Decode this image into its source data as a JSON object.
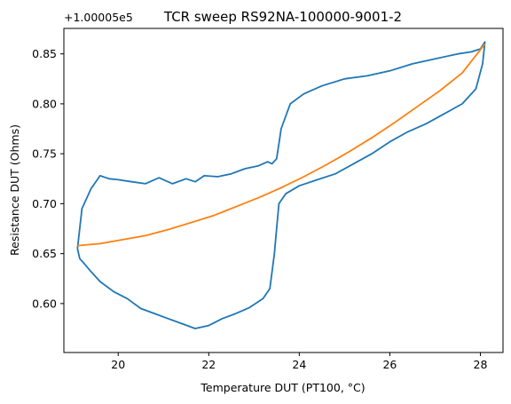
{
  "chart_data": {
    "type": "line",
    "title": "TCR sweep RS92NA-100000-9001-2",
    "xlabel": "Temperature DUT (PT100, °C)",
    "ylabel": "Resistance DUT (Ohms)",
    "offset_label": "+1.00005e5",
    "xlim": [
      18.8,
      28.5
    ],
    "ylim": [
      0.551,
      0.8755
    ],
    "xticks": [
      20,
      22,
      24,
      26,
      28
    ],
    "xtick_labels": [
      "20",
      "22",
      "24",
      "26",
      "28"
    ],
    "yticks": [
      0.6,
      0.65,
      0.7,
      0.75,
      0.8,
      0.85
    ],
    "ytick_labels": [
      "0.60",
      "0.65",
      "0.70",
      "0.75",
      "0.80",
      "0.85"
    ],
    "grid": false,
    "series": [
      {
        "color": "#1f77b4",
        "x": [
          19.1,
          19.2,
          19.4,
          19.6,
          19.8,
          20.0,
          20.3,
          20.6,
          20.9,
          21.2,
          21.5,
          21.7,
          21.9,
          22.2,
          22.5,
          22.8,
          23.1,
          23.3,
          23.4,
          23.5,
          23.55,
          23.6,
          23.8,
          24.1,
          24.5,
          25.0,
          25.5,
          26.0,
          26.5,
          27.0,
          27.5,
          27.8,
          28.0,
          28.1,
          28.05,
          27.9,
          27.6,
          27.2,
          26.8,
          26.4,
          26.0,
          25.6,
          25.2,
          24.8,
          24.4,
          24.0,
          23.7,
          23.55,
          23.5,
          23.45,
          23.35,
          23.2,
          22.9,
          22.6,
          22.3,
          22.0,
          21.7,
          21.4,
          21.1,
          20.8,
          20.5,
          20.2,
          19.9,
          19.6,
          19.4,
          19.25,
          19.15,
          19.1
        ],
        "y": [
          0.655,
          0.695,
          0.715,
          0.728,
          0.725,
          0.724,
          0.722,
          0.72,
          0.726,
          0.72,
          0.725,
          0.722,
          0.728,
          0.727,
          0.73,
          0.735,
          0.738,
          0.742,
          0.74,
          0.745,
          0.76,
          0.775,
          0.8,
          0.81,
          0.818,
          0.825,
          0.828,
          0.833,
          0.84,
          0.845,
          0.85,
          0.852,
          0.855,
          0.862,
          0.84,
          0.815,
          0.8,
          0.79,
          0.78,
          0.772,
          0.762,
          0.75,
          0.74,
          0.73,
          0.724,
          0.718,
          0.71,
          0.7,
          0.675,
          0.65,
          0.615,
          0.605,
          0.596,
          0.59,
          0.585,
          0.578,
          0.575,
          0.58,
          0.585,
          0.59,
          0.595,
          0.605,
          0.612,
          0.622,
          0.632,
          0.64,
          0.645,
          0.655
        ]
      },
      {
        "color": "#ff7f0e",
        "x": [
          19.1,
          19.6,
          20.1,
          20.6,
          21.1,
          21.6,
          22.1,
          22.6,
          23.1,
          23.6,
          24.1,
          24.6,
          25.1,
          25.6,
          26.1,
          26.6,
          27.1,
          27.6,
          28.1
        ],
        "y": [
          0.658,
          0.66,
          0.664,
          0.668,
          0.674,
          0.681,
          0.688,
          0.697,
          0.706,
          0.716,
          0.727,
          0.739,
          0.752,
          0.766,
          0.781,
          0.797,
          0.813,
          0.831,
          0.86
        ]
      }
    ]
  }
}
